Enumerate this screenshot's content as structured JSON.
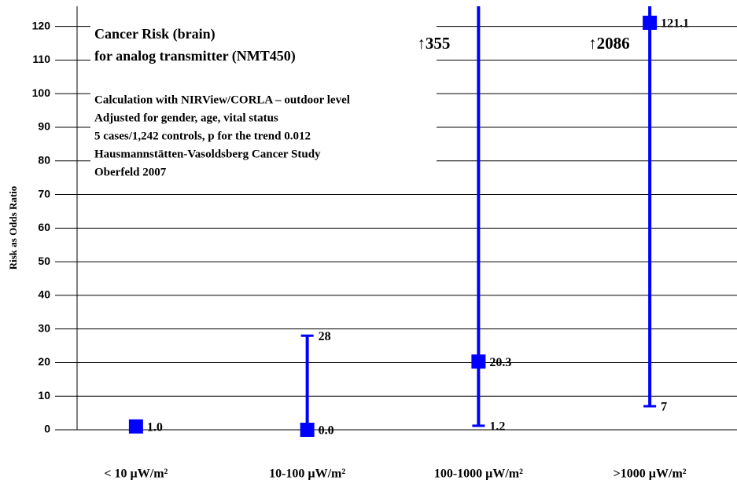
{
  "chart_data": {
    "type": "errorbar",
    "title": "Cancer Risk (brain)",
    "subtitle": "for analog transmitter (NMT450)",
    "annotations": [
      "Calculation with NIRView/CORLA – outdoor level",
      "Adjusted for gender, age, vital status",
      "5 cases/1,242 controls, p for the trend 0.012",
      "Hausmannstätten-Vasoldsberg Cancer Study",
      "Oberfeld 2007"
    ],
    "y_label": "Risk as Odds Ratio",
    "categories": [
      "< 10 µW/m²",
      "10-100 µW/m²",
      "100-1000 µW/m²",
      ">1000 µW/m²"
    ],
    "values": [
      1.0,
      0.0,
      20.3,
      121.1
    ],
    "value_labels": [
      "1.0",
      "0.0",
      "20.3",
      "121.1"
    ],
    "lower": [
      null,
      0,
      1.2,
      7
    ],
    "upper": [
      null,
      28,
      355,
      2086
    ],
    "upper_labels": [
      null,
      "28",
      "↑355",
      "↑2086"
    ],
    "color": "#0000ff",
    "ylim": [
      0,
      126
    ],
    "yticks": [
      0,
      10,
      20,
      30,
      40,
      50,
      60,
      70,
      80,
      90,
      100,
      110,
      120
    ],
    "grid": true
  }
}
